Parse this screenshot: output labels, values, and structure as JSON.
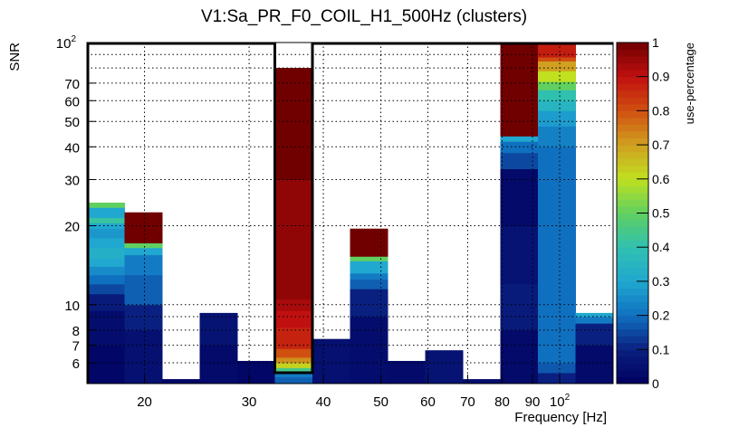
{
  "chart_data": {
    "type": "heatmap",
    "title": "V1:Sa_PR_F0_COIL_H1_500Hz (clusters)",
    "xlabel": "Frequency [Hz]",
    "ylabel": "SNR",
    "zlabel": "use-percentage",
    "xscale": "log",
    "yscale": "log",
    "xlim": [
      16,
      123
    ],
    "ylim": [
      5,
      100
    ],
    "zlim": [
      0,
      1
    ],
    "grid": true,
    "x_ticks": [
      {
        "v": 20,
        "label": "20"
      },
      {
        "v": 30,
        "label": "30"
      },
      {
        "v": 40,
        "label": "40"
      },
      {
        "v": 50,
        "label": "50"
      },
      {
        "v": 60,
        "label": "60"
      },
      {
        "v": 70,
        "label": "70"
      },
      {
        "v": 80,
        "label": "80"
      },
      {
        "v": 90,
        "label": "90"
      },
      {
        "v": 100,
        "label": "10",
        "sup": "2"
      }
    ],
    "y_ticks": [
      {
        "v": 6,
        "label": "6"
      },
      {
        "v": 7,
        "label": "7"
      },
      {
        "v": 8,
        "label": "8"
      },
      {
        "v": 10,
        "label": "10"
      },
      {
        "v": 20,
        "label": "20"
      },
      {
        "v": 30,
        "label": "30"
      },
      {
        "v": 40,
        "label": "40"
      },
      {
        "v": 50,
        "label": "50"
      },
      {
        "v": 60,
        "label": "60"
      },
      {
        "v": 70,
        "label": "70"
      },
      {
        "v": 100,
        "label": "10",
        "sup": "2"
      }
    ],
    "z_ticks": [
      "0",
      "0.1",
      "0.2",
      "0.3",
      "0.4",
      "0.5",
      "0.6",
      "0.7",
      "0.8",
      "0.9",
      "1"
    ],
    "selected_bin": 5,
    "selected_snr_min": 5.5,
    "columns": [
      [
        [
          5,
          7,
          0.02
        ],
        [
          7,
          9.5,
          0.04
        ],
        [
          9.5,
          11,
          0.08
        ],
        [
          11,
          12,
          0.15
        ],
        [
          12,
          13,
          0.2
        ],
        [
          13,
          14,
          0.25
        ],
        [
          14,
          15,
          0.3
        ],
        [
          15,
          16.5,
          0.33
        ],
        [
          16.5,
          18,
          0.3
        ],
        [
          18,
          19.5,
          0.27
        ],
        [
          19.5,
          20.5,
          0.3
        ],
        [
          20.5,
          21.5,
          0.42
        ],
        [
          21.5,
          23.5,
          0.3
        ],
        [
          23.5,
          24.5,
          0.5
        ]
      ],
      [
        [
          5,
          8,
          0.05
        ],
        [
          8,
          10,
          0.1
        ],
        [
          10,
          13,
          0.18
        ],
        [
          13,
          15.5,
          0.22
        ],
        [
          15.5,
          16.5,
          0.3
        ],
        [
          16.5,
          17.2,
          0.5
        ],
        [
          17.2,
          22.5,
          1.0
        ]
      ],
      [
        [
          5,
          5.2,
          0.02
        ]
      ],
      [
        [
          5,
          7,
          0.03
        ],
        [
          7,
          9.3,
          0.06
        ]
      ],
      [
        [
          5,
          6.1,
          0.02
        ]
      ],
      [
        [
          5,
          5.3,
          0.18
        ],
        [
          5.3,
          5.55,
          0.22
        ],
        [
          5.55,
          5.75,
          0.45
        ],
        [
          5.75,
          6,
          0.62
        ],
        [
          6,
          6.3,
          0.72
        ],
        [
          6.3,
          6.8,
          0.8
        ],
        [
          6.8,
          8.2,
          0.87
        ],
        [
          8.2,
          9.5,
          0.9
        ],
        [
          9.5,
          10.5,
          0.93
        ],
        [
          10.5,
          30,
          0.96
        ],
        [
          30,
          80,
          1.0
        ]
      ],
      [
        [
          5,
          7.4,
          0.05
        ]
      ],
      [
        [
          5,
          9,
          0.04
        ],
        [
          9,
          11.5,
          0.1
        ],
        [
          11.5,
          12.5,
          0.18
        ],
        [
          12.5,
          13.2,
          0.22
        ],
        [
          13.2,
          14.7,
          0.3
        ],
        [
          14.7,
          15.3,
          0.5
        ],
        [
          15.3,
          19.5,
          1.0
        ]
      ],
      [
        [
          5,
          6.1,
          0.03
        ]
      ],
      [
        [
          5,
          6.7,
          0.06
        ]
      ],
      [
        [
          5,
          5.2,
          0.04
        ]
      ],
      [
        [
          5,
          8,
          0.03
        ],
        [
          8,
          12,
          0.08
        ],
        [
          12,
          20,
          0.06
        ],
        [
          20,
          33,
          0.03
        ],
        [
          33,
          38,
          0.15
        ],
        [
          38,
          42,
          0.2
        ],
        [
          42,
          44,
          0.3
        ],
        [
          44,
          100,
          1.0
        ]
      ],
      [
        [
          5,
          5.5,
          0.1
        ],
        [
          5.5,
          6,
          0.17
        ],
        [
          6,
          40,
          0.2
        ],
        [
          40,
          48,
          0.23
        ],
        [
          48,
          55,
          0.28
        ],
        [
          55,
          60,
          0.35
        ],
        [
          60,
          66,
          0.4
        ],
        [
          66,
          71,
          0.5
        ],
        [
          71,
          78,
          0.6
        ],
        [
          78,
          85,
          0.7
        ],
        [
          85,
          88,
          0.8
        ],
        [
          88,
          100,
          0.88
        ]
      ],
      [
        [
          5,
          7,
          0.03
        ],
        [
          7,
          8.5,
          0.1
        ],
        [
          8.5,
          9,
          0.22
        ],
        [
          9,
          9.3,
          0.3
        ]
      ]
    ]
  }
}
